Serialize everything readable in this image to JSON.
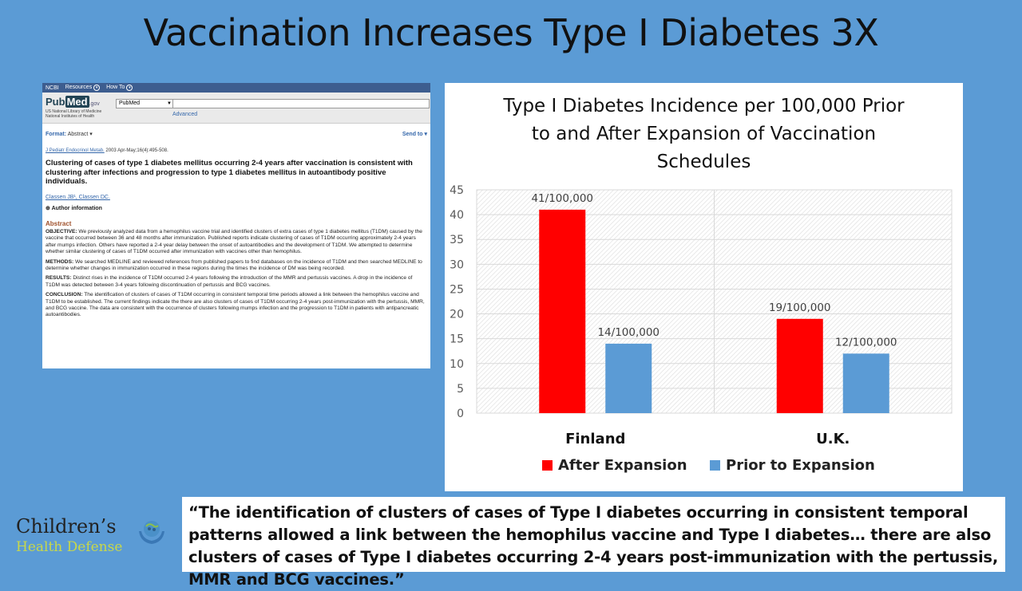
{
  "slide": {
    "title": "Vaccination Increases Type I Diabetes 3X"
  },
  "pubmed": {
    "ncbi_label": "NCBI",
    "nav_resources": "Resources",
    "nav_howto": "How To",
    "logo_text_pub": "Pub",
    "logo_text_med": "Med",
    "logo_text_gov": ".gov",
    "nlm_line1": "US National Library of Medicine",
    "nlm_line2": "National Institutes of Health",
    "db_selected": "PubMed",
    "advanced_link": "Advanced",
    "format_label": "Format:",
    "format_value": "Abstract",
    "send_to": "Send to",
    "journal": "J Pediatr Endocrinol Metab.",
    "citation_detail": "2003 Apr-May;16(4):495-508.",
    "article_title": "Clustering of cases of type 1 diabetes mellitus occurring 2-4 years after vaccination is consistent with clustering after infections and progression to type 1 diabetes mellitus in autoantibody positive individuals.",
    "authors": "Classen JB¹, Classen DC.",
    "author_info": "Author information",
    "abstract_heading": "Abstract",
    "objective_label": "OBJECTIVE:",
    "objective_text": " We previously analyzed data from a hemophilus vaccine trial and identified clusters of extra cases of type 1 diabetes mellitus (T1DM) caused by the vaccine that occurred between 36 and 48 months after immunization. Published reports indicate clustering of cases of T1DM occurring approximately 2-4 years after mumps infection. Others have reported a 2-4 year delay between the onset of autoantibodies and the development of T1DM. We attempted to determine whether similar clustering of cases of T1DM occurred after immunization with vaccines other than hemophilus.",
    "methods_label": "METHODS:",
    "methods_text": " We searched MEDLINE and reviewed references from published papers to find databases on the incidence of T1DM and then searched MEDLINE to determine whether changes in immunization occurred in these regions during the times the incidence of DM was being recorded.",
    "results_label": "RESULTS:",
    "results_text": " Distinct rises in the incidence of T1DM occurred 2-4 years following the introduction of the MMR and pertussis vaccines. A drop in the incidence of T1DM was detected between 3-4 years following discontinuation of pertussis and BCG vaccines.",
    "conclusion_label": "CONCLUSION:",
    "conclusion_text": " The identification of clusters of cases of T1DM occurring in consistent temporal time periods allowed a link between the hemophilus vaccine and T1DM to be established. The current findings indicate the there are also clusters of cases of T1DM occurring 2-4 years post-immunization with the pertussis, MMR, and BCG vaccine. The data are consistent with the occurrence of clusters following mumps infection and the progression to T1DM in patients with antipancreatic autoantibodies."
  },
  "chart_data": {
    "type": "bar",
    "title_lines": [
      "Type I Diabetes Incidence per 100,000 Prior",
      "to and After Expansion of Vaccination",
      "Schedules"
    ],
    "categories": [
      "Finland",
      "U.K."
    ],
    "series": [
      {
        "name": "After Expansion",
        "values": [
          41,
          19
        ],
        "labels": [
          "41/100,000",
          "19/100,000"
        ],
        "color": "#ff0000"
      },
      {
        "name": "Prior to Expansion",
        "values": [
          14,
          12
        ],
        "labels": [
          "14/100,000",
          "12/100,000"
        ],
        "color": "#5b9bd5"
      }
    ],
    "ylim": [
      0,
      45
    ],
    "yticks": [
      "0",
      "5",
      "10",
      "15",
      "20",
      "25",
      "30",
      "35",
      "40",
      "45"
    ],
    "grid": true,
    "legend": "bottom"
  },
  "quote": {
    "text": "“The identification of clusters of cases of Type I diabetes occurring in consistent temporal patterns allowed a link between the hemophilus vaccine and Type I diabetes…  there are also clusters of cases of Type I diabetes occurring 2-4 years post-immunization with the pertussis, MMR and BCG vaccines.”"
  },
  "logo": {
    "line1": "Children’s",
    "line2": "Health Defense"
  }
}
